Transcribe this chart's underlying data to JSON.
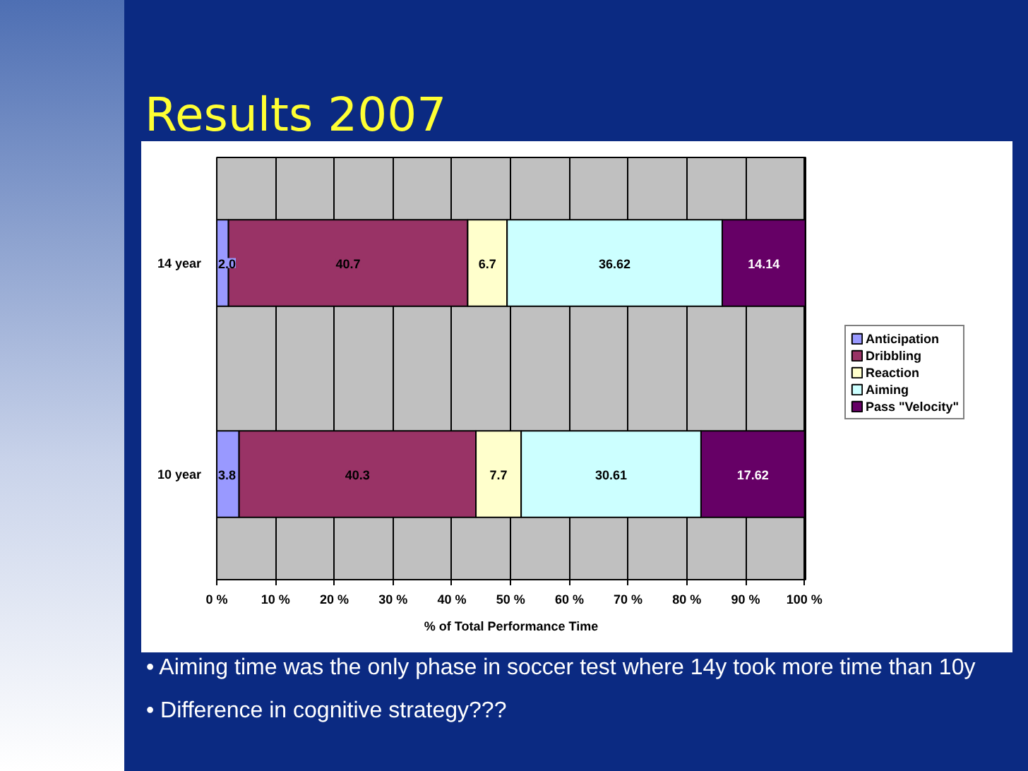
{
  "chart_data": {
    "type": "bar",
    "orientation": "horizontal",
    "stacked": true,
    "title": "Results 2007",
    "xlabel": "% of Total Performance Time",
    "categories": [
      "14 year",
      "10 year"
    ],
    "series": [
      {
        "name": "Anticipation",
        "color": "#9999ff",
        "values": [
          2.0,
          3.8
        ],
        "value_labels": [
          "2.0",
          "3.8"
        ]
      },
      {
        "name": "Dribbling",
        "color": "#993366",
        "values": [
          40.7,
          40.3
        ],
        "value_labels": [
          "40.7",
          "40.3"
        ]
      },
      {
        "name": "Reaction",
        "color": "#ffffcc",
        "values": [
          6.7,
          7.7
        ],
        "value_labels": [
          "6.7",
          "7.7"
        ]
      },
      {
        "name": "Aiming",
        "color": "#ccffff",
        "values": [
          36.62,
          30.61
        ],
        "value_labels": [
          "36.62",
          "30.61"
        ]
      },
      {
        "name": "Pass \"Velocity\"",
        "color": "#660066",
        "values": [
          14.14,
          17.62
        ],
        "value_labels": [
          "14.14",
          "17.62"
        ]
      }
    ],
    "xlim": [
      0,
      100.2
    ],
    "xticks": [
      {
        "value": 0,
        "label": "0 %"
      },
      {
        "value": 10,
        "label": "10 %"
      },
      {
        "value": 20,
        "label": "20 %"
      },
      {
        "value": 30,
        "label": "30 %"
      },
      {
        "value": 40,
        "label": "40 %"
      },
      {
        "value": 50,
        "label": "50 %"
      },
      {
        "value": 60,
        "label": "60 %"
      },
      {
        "value": 70,
        "label": "70 %"
      },
      {
        "value": 80,
        "label": "80 %"
      },
      {
        "value": 90,
        "label": "90 %"
      },
      {
        "value": 100,
        "label": "100 %"
      }
    ],
    "grid": "x",
    "legend": "right",
    "annotations": [
      "• Aiming time was the only phase in soccer test where 14y  took more time than 10y",
      "• Difference in cognitive strategy???"
    ]
  }
}
